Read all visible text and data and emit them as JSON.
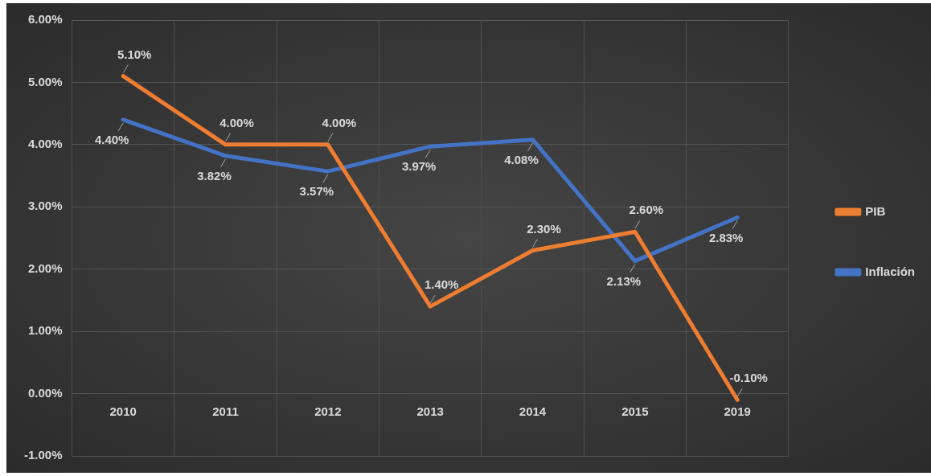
{
  "chart_data": {
    "type": "line",
    "categories": [
      "2010",
      "2011",
      "2012",
      "2013",
      "2014",
      "2015",
      "2019"
    ],
    "series": [
      {
        "name": "PIB",
        "color": "#ed7d31",
        "values": [
          5.1,
          4.0,
          4.0,
          1.4,
          2.3,
          2.6,
          -0.1
        ],
        "value_labels": [
          "5.10%",
          "4.00%",
          "4.00%",
          "1.40%",
          "2.30%",
          "2.60%",
          "-0.10%"
        ]
      },
      {
        "name": "Inflación",
        "color": "#4472c4",
        "values": [
          4.4,
          3.82,
          3.57,
          3.97,
          4.08,
          2.13,
          2.83
        ],
        "value_labels": [
          "4.40%",
          "3.82%",
          "3.57%",
          "3.97%",
          "4.08%",
          "2.13%",
          "2.83%"
        ]
      }
    ],
    "ylim": [
      -1,
      6
    ],
    "yticks": [
      {
        "value": -1,
        "label": "-1.00%"
      },
      {
        "value": 0,
        "label": "0.00%"
      },
      {
        "value": 1,
        "label": "1.00%"
      },
      {
        "value": 2,
        "label": "2.00%"
      },
      {
        "value": 3,
        "label": "3.00%"
      },
      {
        "value": 4,
        "label": "4.00%"
      },
      {
        "value": 5,
        "label": "5.00%"
      },
      {
        "value": 6,
        "label": "6.00%"
      }
    ],
    "grid": true,
    "legend": "right",
    "marker": "none",
    "line_style": "solid"
  }
}
